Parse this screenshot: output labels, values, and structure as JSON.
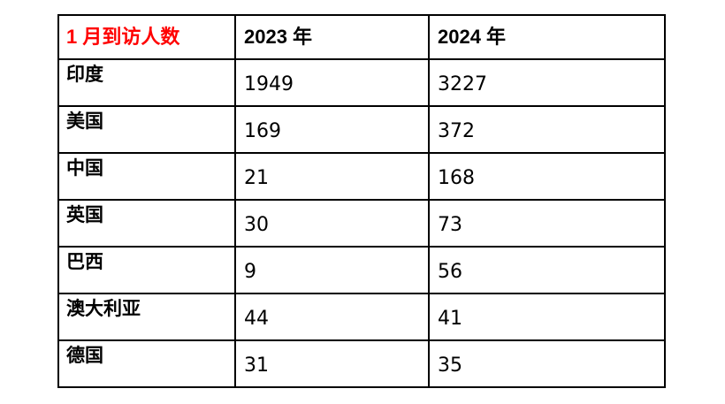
{
  "page": {
    "background": "#ffffff",
    "border_color": "#000000",
    "title_color": "#FF0000"
  },
  "table": {
    "title": "1 月到访人数",
    "year_columns": [
      "2023 年",
      "2024 年"
    ],
    "rows": [
      {
        "country": "印度",
        "v2023": "1949",
        "v2024": "3227"
      },
      {
        "country": "美国",
        "v2023": "169",
        "v2024": "372"
      },
      {
        "country": "中国",
        "v2023": "21",
        "v2024": "168"
      },
      {
        "country": "英国",
        "v2023": "30",
        "v2024": "73"
      },
      {
        "country": "巴西",
        "v2023": "9",
        "v2024": "56"
      },
      {
        "country": "澳大利亚",
        "v2023": "44",
        "v2024": "41"
      },
      {
        "country": "德国",
        "v2023": "31",
        "v2024": "35"
      }
    ]
  },
  "chart_data": {
    "type": "table",
    "title": "1 月到访人数",
    "categories": [
      "印度",
      "美国",
      "中国",
      "英国",
      "巴西",
      "澳大利亚",
      "德国"
    ],
    "series": [
      {
        "name": "2023 年",
        "values": [
          1949,
          169,
          21,
          30,
          9,
          44,
          31
        ]
      },
      {
        "name": "2024 年",
        "values": [
          3227,
          372,
          168,
          73,
          56,
          41,
          35
        ]
      }
    ]
  }
}
